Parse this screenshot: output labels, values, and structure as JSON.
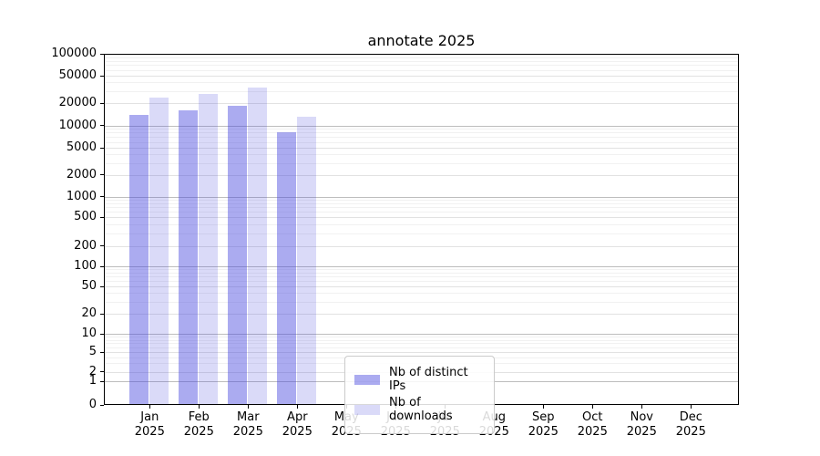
{
  "chart_data": {
    "type": "bar",
    "title": "annotate 2025",
    "yscale": "symlog",
    "ylim": [
      0,
      100000
    ],
    "grid": true,
    "legend_position": "inside plot, lower center",
    "categories": [
      "Jan 2025",
      "Feb 2025",
      "Mar 2025",
      "Apr 2025",
      "May 2025",
      "Jun 2025",
      "Jul 2025",
      "Aug 2025",
      "Sep 2025",
      "Oct 2025",
      "Nov 2025",
      "Dec 2025"
    ],
    "months": [
      {
        "month": "Jan",
        "year": "2025"
      },
      {
        "month": "Feb",
        "year": "2025"
      },
      {
        "month": "Mar",
        "year": "2025"
      },
      {
        "month": "Apr",
        "year": "2025"
      },
      {
        "month": "May",
        "year": "2025"
      },
      {
        "month": "Jun",
        "year": "2025"
      },
      {
        "month": "Jul",
        "year": "2025"
      },
      {
        "month": "Aug",
        "year": "2025"
      },
      {
        "month": "Sep",
        "year": "2025"
      },
      {
        "month": "Oct",
        "year": "2025"
      },
      {
        "month": "Nov",
        "year": "2025"
      },
      {
        "month": "Dec",
        "year": "2025"
      }
    ],
    "series": [
      {
        "name": "Nb of distinct IPs",
        "color": "rgba(68,68,221,0.45)",
        "values": [
          14000,
          15800,
          18300,
          8100,
          null,
          null,
          null,
          null,
          null,
          null,
          null,
          null
        ]
      },
      {
        "name": "Nb of downloads",
        "color": "rgba(68,68,221,0.20)",
        "values": [
          24300,
          27400,
          33500,
          13200,
          null,
          null,
          null,
          null,
          null,
          null,
          null,
          null
        ]
      }
    ],
    "ytick_labels": [
      "100000",
      "50000",
      "20000",
      "10000",
      "5000",
      "2000",
      "1000",
      "500",
      "200",
      "100",
      "50",
      "20",
      "10",
      "5",
      "2",
      "1",
      "0"
    ]
  },
  "colors": {
    "axis": "#000000",
    "grid_major": "#bdbdbd",
    "grid_mid": "#e2e2e2",
    "grid_minor": "#f1f1f1",
    "legend_border": "#cbcbcb",
    "bar_distinct_ips": "rgba(68,68,221,0.45)",
    "bar_downloads": "rgba(68,68,221,0.20)"
  }
}
